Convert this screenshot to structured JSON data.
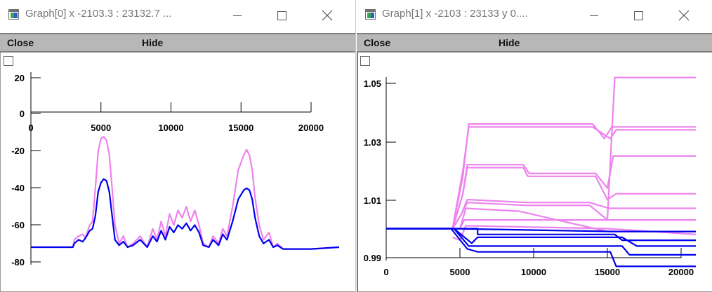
{
  "windows": [
    {
      "title": "Graph[0]  x -2103.3 : 23132.7  ...",
      "menu": {
        "close_label": "Close",
        "hide_label": "Hide"
      },
      "chart_data": {
        "type": "line",
        "xlim": [
          -2103.3,
          23132.7
        ],
        "x_ticks": [
          0,
          5000,
          10000,
          15000,
          20000
        ],
        "x_tick_labels": [
          "0",
          "5000",
          "10000",
          "15000",
          "20000"
        ],
        "y_ticks": [
          20,
          0,
          -20,
          -40,
          -60,
          -80
        ],
        "y_tick_labels": [
          "20",
          "0",
          "-20",
          "-40",
          "-60",
          "-80"
        ],
        "x_axis_at_y": 0,
        "series": [
          {
            "color": "#ee82ee",
            "points": [
              [
                0,
                -72
              ],
              [
                3000,
                -72
              ],
              [
                3100,
                -68
              ],
              [
                3400,
                -66
              ],
              [
                3700,
                -65
              ],
              [
                3900,
                -67
              ],
              [
                4200,
                -60
              ],
              [
                4400,
                -58
              ],
              [
                4600,
                -40
              ],
              [
                4800,
                -20
              ],
              [
                5000,
                -13
              ],
              [
                5200,
                -12
              ],
              [
                5400,
                -14
              ],
              [
                5600,
                -22
              ],
              [
                5800,
                -40
              ],
              [
                6000,
                -60
              ],
              [
                6300,
                -70
              ],
              [
                6600,
                -66
              ],
              [
                6900,
                -72
              ],
              [
                7300,
                -70
              ],
              [
                7800,
                -66
              ],
              [
                8300,
                -72
              ],
              [
                8700,
                -62
              ],
              [
                9000,
                -68
              ],
              [
                9300,
                -58
              ],
              [
                9600,
                -66
              ],
              [
                9900,
                -54
              ],
              [
                10200,
                -60
              ],
              [
                10500,
                -52
              ],
              [
                10800,
                -56
              ],
              [
                11100,
                -50
              ],
              [
                11400,
                -58
              ],
              [
                11700,
                -52
              ],
              [
                12000,
                -60
              ],
              [
                12300,
                -70
              ],
              [
                12700,
                -72
              ],
              [
                13000,
                -66
              ],
              [
                13400,
                -70
              ],
              [
                13700,
                -62
              ],
              [
                14000,
                -66
              ],
              [
                14400,
                -50
              ],
              [
                14800,
                -30
              ],
              [
                15200,
                -22
              ],
              [
                15400,
                -19
              ],
              [
                15600,
                -22
              ],
              [
                15800,
                -30
              ],
              [
                16000,
                -45
              ],
              [
                16300,
                -60
              ],
              [
                16600,
                -68
              ],
              [
                17000,
                -64
              ],
              [
                17300,
                -72
              ],
              [
                17600,
                -70
              ],
              [
                18000,
                -73
              ],
              [
                20000,
                -73
              ],
              [
                22000,
                -72
              ]
            ]
          },
          {
            "color": "#0000ee",
            "points": [
              [
                0,
                -72
              ],
              [
                3000,
                -72
              ],
              [
                3100,
                -70
              ],
              [
                3400,
                -68
              ],
              [
                3700,
                -69
              ],
              [
                3900,
                -67
              ],
              [
                4200,
                -63
              ],
              [
                4400,
                -62
              ],
              [
                4600,
                -55
              ],
              [
                4800,
                -42
              ],
              [
                5000,
                -37
              ],
              [
                5200,
                -35
              ],
              [
                5400,
                -36
              ],
              [
                5600,
                -42
              ],
              [
                5800,
                -55
              ],
              [
                6000,
                -68
              ],
              [
                6300,
                -71
              ],
              [
                6600,
                -69
              ],
              [
                6900,
                -72
              ],
              [
                7300,
                -71
              ],
              [
                7800,
                -68
              ],
              [
                8300,
                -72
              ],
              [
                8700,
                -66
              ],
              [
                9000,
                -69
              ],
              [
                9300,
                -63
              ],
              [
                9600,
                -68
              ],
              [
                9900,
                -61
              ],
              [
                10200,
                -64
              ],
              [
                10500,
                -60
              ],
              [
                10800,
                -62
              ],
              [
                11100,
                -59
              ],
              [
                11400,
                -63
              ],
              [
                11700,
                -60
              ],
              [
                12000,
                -64
              ],
              [
                12300,
                -71
              ],
              [
                12700,
                -72
              ],
              [
                13000,
                -68
              ],
              [
                13400,
                -71
              ],
              [
                13700,
                -65
              ],
              [
                14000,
                -68
              ],
              [
                14400,
                -58
              ],
              [
                14800,
                -46
              ],
              [
                15200,
                -41
              ],
              [
                15400,
                -40
              ],
              [
                15600,
                -41
              ],
              [
                15800,
                -46
              ],
              [
                16000,
                -56
              ],
              [
                16300,
                -66
              ],
              [
                16600,
                -70
              ],
              [
                17000,
                -68
              ],
              [
                17300,
                -72
              ],
              [
                17600,
                -71
              ],
              [
                18000,
                -73
              ],
              [
                20000,
                -73
              ],
              [
                22000,
                -72
              ]
            ]
          }
        ]
      }
    },
    {
      "title": "Graph[1]  x -2103 : 23133  y 0....",
      "menu": {
        "close_label": "Close",
        "hide_label": "Hide"
      },
      "chart_data": {
        "type": "line",
        "xlim": [
          -2103,
          23133
        ],
        "x_ticks": [
          0,
          5000,
          10000,
          15000,
          20000
        ],
        "x_tick_labels": [
          "0",
          "5000",
          "10000",
          "15000",
          "20000"
        ],
        "y_ticks": [
          1.05,
          1.03,
          1.01,
          0.99
        ],
        "y_tick_labels": [
          "1.05",
          "1.03",
          "1.01",
          "0.99"
        ],
        "x_axis_at_y": 0.99,
        "series": [
          {
            "color": "#ee82ee",
            "points": [
              [
                4500,
                1.0
              ],
              [
                5000,
                1.0
              ],
              [
                5300,
                1.003
              ],
              [
                6000,
                1.003
              ],
              [
                15000,
                1.003
              ],
              [
                15500,
                1.052
              ],
              [
                21000,
                1.052
              ]
            ]
          },
          {
            "color": "#ee82ee",
            "points": [
              [
                4500,
                1.0
              ],
              [
                5200,
                1.018
              ],
              [
                5600,
                1.036
              ],
              [
                14000,
                1.036
              ],
              [
                14800,
                1.031
              ],
              [
                15300,
                1.035
              ],
              [
                21000,
                1.035
              ]
            ]
          },
          {
            "color": "#ee82ee",
            "points": [
              [
                4500,
                1.0
              ],
              [
                5200,
                1.02
              ],
              [
                5600,
                1.035
              ],
              [
                14000,
                1.035
              ],
              [
                14600,
                1.033
              ],
              [
                15200,
                1.031
              ],
              [
                15600,
                1.034
              ],
              [
                21000,
                1.034
              ]
            ]
          },
          {
            "color": "#ee82ee",
            "points": [
              [
                4500,
                1.0
              ],
              [
                5200,
                1.012
              ],
              [
                5500,
                1.022
              ],
              [
                9300,
                1.022
              ],
              [
                9700,
                1.019
              ],
              [
                14200,
                1.019
              ],
              [
                15000,
                1.014
              ],
              [
                15400,
                1.025
              ],
              [
                21000,
                1.025
              ]
            ]
          },
          {
            "color": "#ee82ee",
            "points": [
              [
                4500,
                1.0
              ],
              [
                5200,
                1.012
              ],
              [
                5500,
                1.021
              ],
              [
                9300,
                1.021
              ],
              [
                9600,
                1.018
              ],
              [
                14200,
                1.018
              ],
              [
                15000,
                1.01
              ],
              [
                15600,
                1.012
              ],
              [
                21000,
                1.012
              ]
            ]
          },
          {
            "color": "#ee82ee",
            "points": [
              [
                4500,
                1.0
              ],
              [
                5100,
                1.005
              ],
              [
                5500,
                1.01
              ],
              [
                9500,
                1.009
              ],
              [
                13800,
                1.009
              ],
              [
                15100,
                1.007
              ],
              [
                21000,
                1.007
              ]
            ]
          },
          {
            "color": "#ee82ee",
            "points": [
              [
                4500,
                1.0
              ],
              [
                5100,
                1.005
              ],
              [
                5500,
                1.009
              ],
              [
                9500,
                1.008
              ],
              [
                13800,
                1.008
              ],
              [
                15000,
                1.003
              ],
              [
                21000,
                1.003
              ]
            ]
          },
          {
            "color": "#ee82ee",
            "points": [
              [
                4500,
                1.0
              ],
              [
                5000,
                1.0
              ],
              [
                5400,
                1.007
              ],
              [
                9000,
                1.006
              ],
              [
                15000,
                0.999
              ],
              [
                21000,
                0.999
              ]
            ]
          },
          {
            "color": "#ee82ee",
            "points": [
              [
                4500,
                0.997
              ],
              [
                5000,
                0.996
              ],
              [
                5400,
                1.001
              ],
              [
                15000,
                1.0
              ],
              [
                21000,
                0.998
              ]
            ]
          },
          {
            "color": "#0000ee",
            "points": [
              [
                0,
                1.0
              ],
              [
                4400,
                1.0
              ],
              [
                5500,
                0.993
              ],
              [
                6200,
                0.992
              ],
              [
                15200,
                0.992
              ],
              [
                15600,
                0.987
              ],
              [
                16000,
                0.987
              ],
              [
                21000,
                0.987
              ]
            ]
          },
          {
            "color": "#0000ee",
            "points": [
              [
                0,
                1.0
              ],
              [
                4600,
                1.0
              ],
              [
                5600,
                0.994
              ],
              [
                7000,
                0.994
              ],
              [
                16000,
                0.994
              ],
              [
                16500,
                0.991
              ],
              [
                21000,
                0.991
              ]
            ]
          },
          {
            "color": "#0000ee",
            "points": [
              [
                0,
                1.0
              ],
              [
                4600,
                1.0
              ],
              [
                5800,
                0.995
              ],
              [
                6200,
                0.997
              ],
              [
                16000,
                0.997
              ],
              [
                17000,
                0.994
              ],
              [
                21000,
                0.994
              ]
            ]
          },
          {
            "color": "#0000ee",
            "points": [
              [
                0,
                1.0
              ],
              [
                6200,
                1.0
              ],
              [
                6200,
                0.998
              ],
              [
                15500,
                0.998
              ],
              [
                16000,
                0.996
              ],
              [
                21000,
                0.996
              ]
            ]
          },
          {
            "color": "#0000ee",
            "points": [
              [
                0,
                1.0
              ],
              [
                4400,
                1.0
              ],
              [
                15500,
                0.999
              ],
              [
                21000,
                0.999
              ]
            ]
          }
        ]
      }
    }
  ]
}
